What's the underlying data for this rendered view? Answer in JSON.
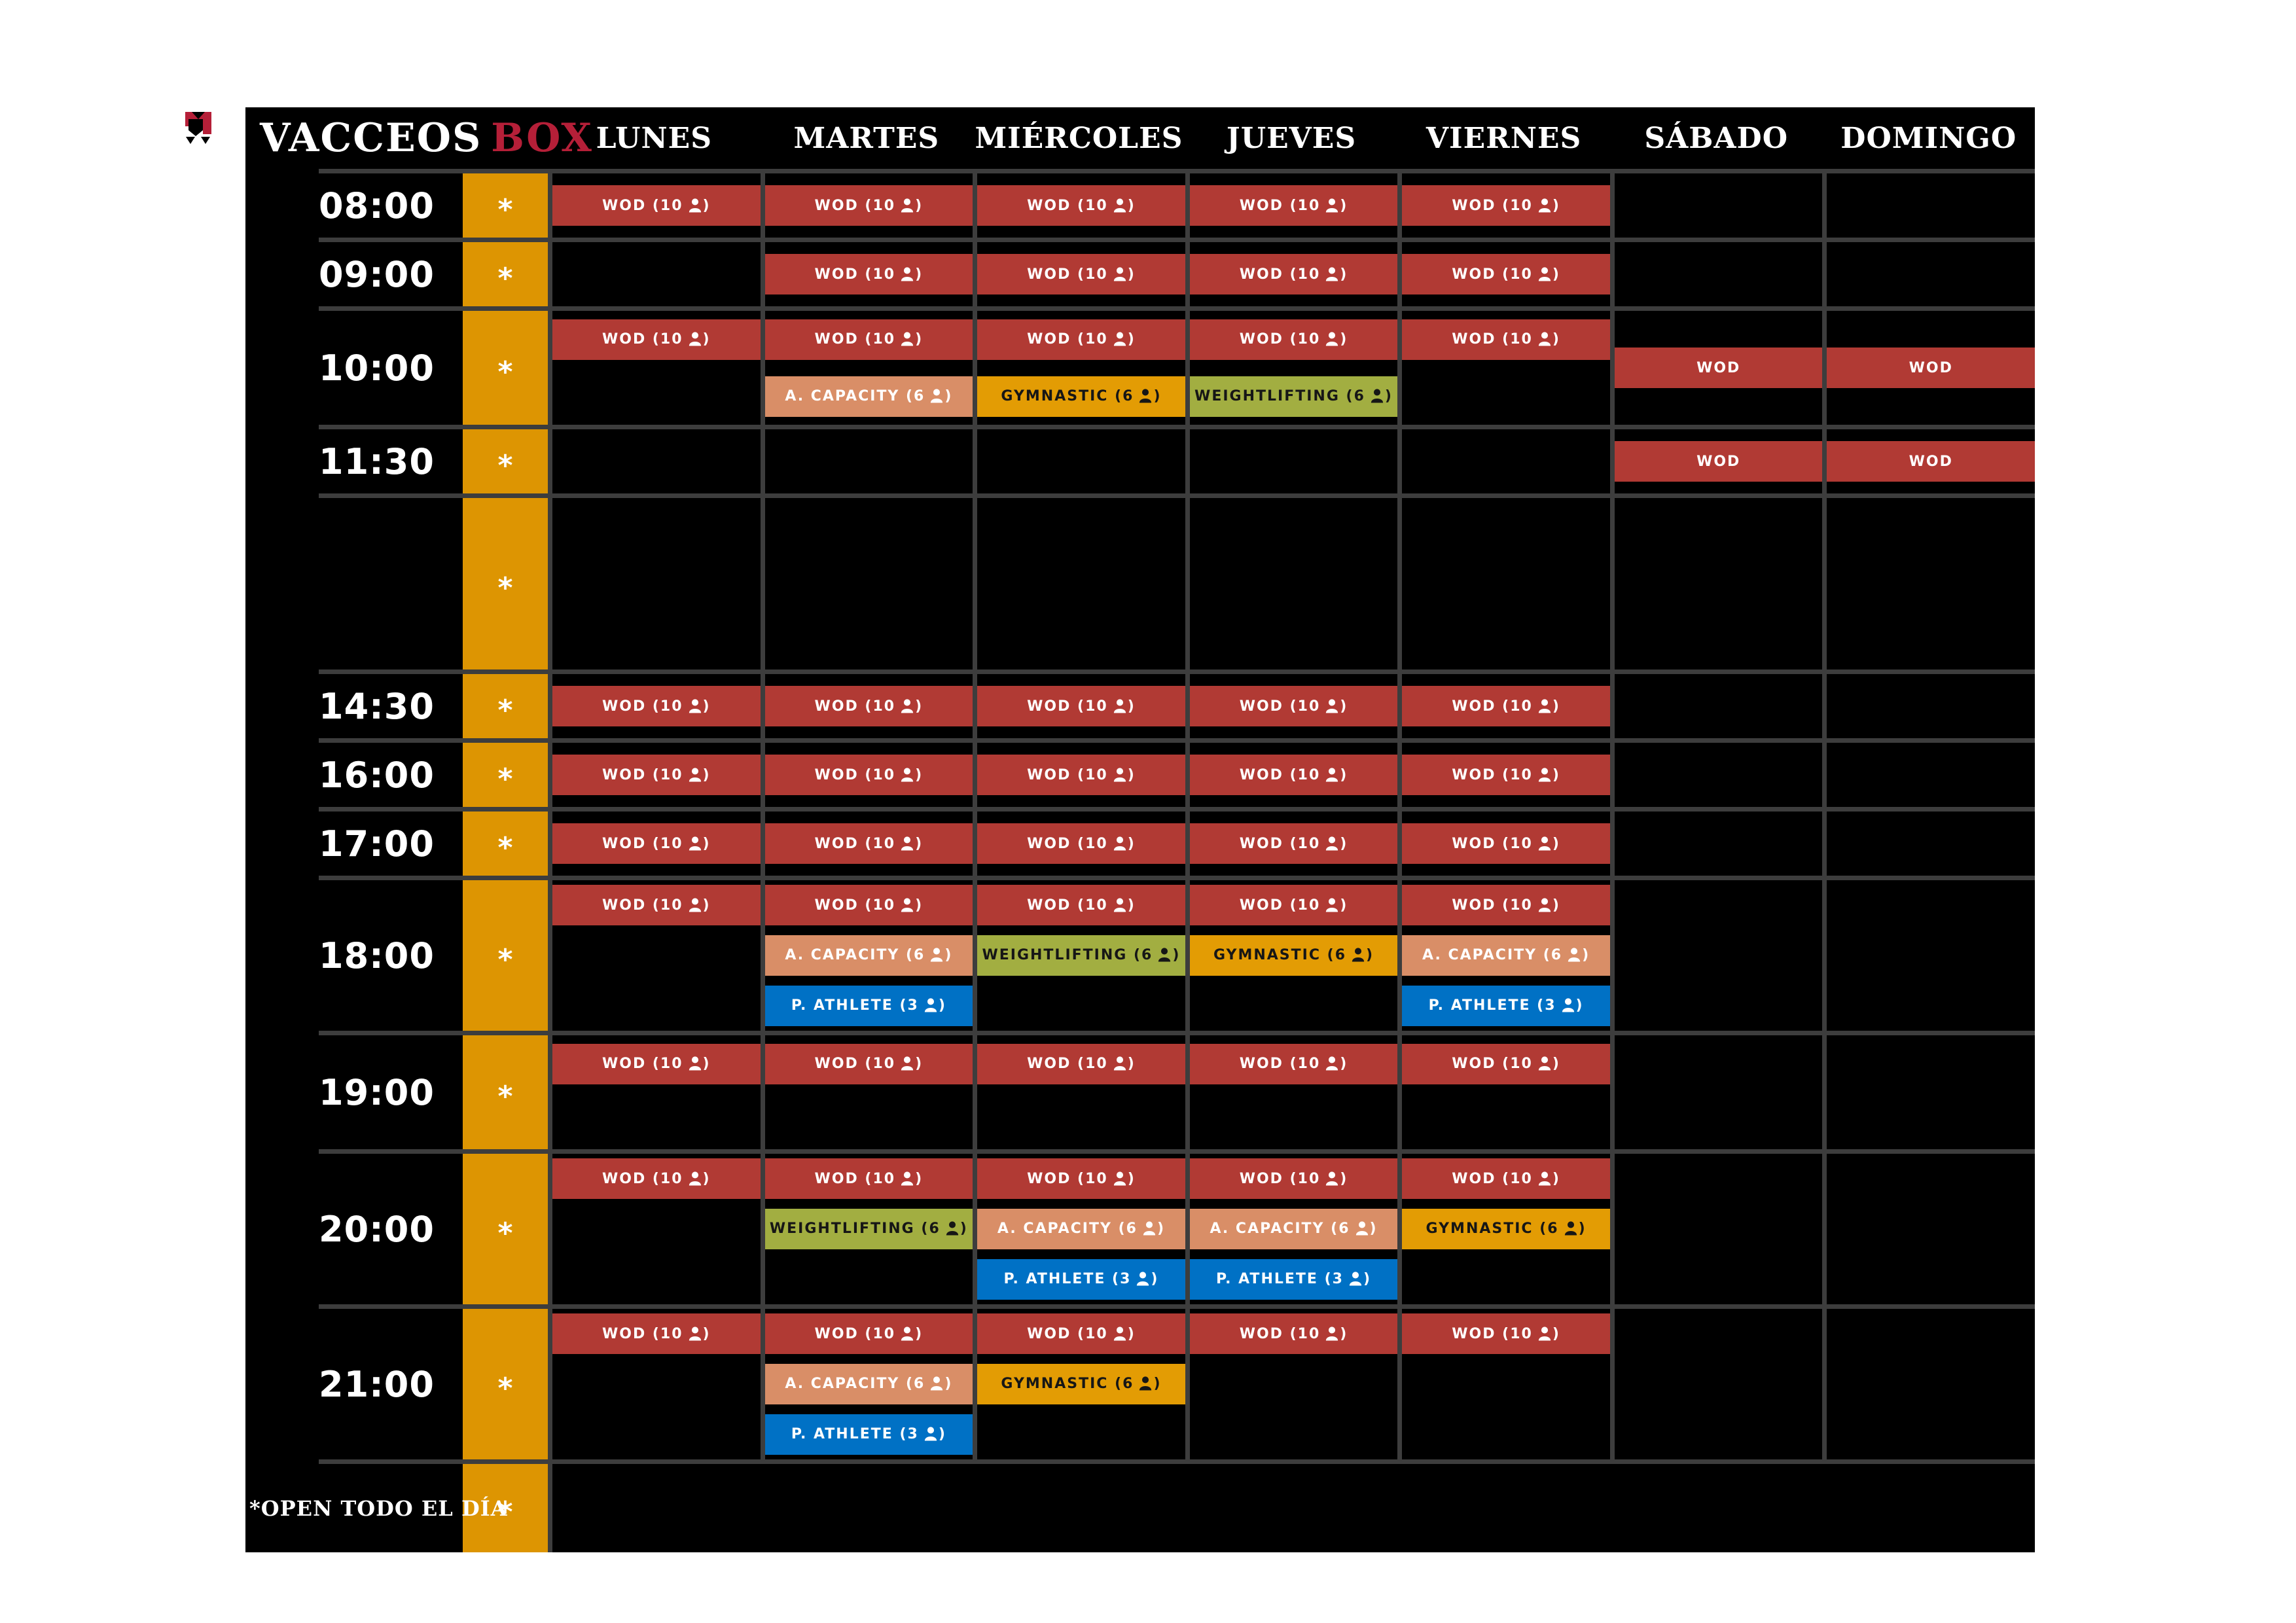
{
  "brand": {
    "name": "VACCEOS",
    "suffix": "BOX"
  },
  "days": [
    "LUNES",
    "MARTES",
    "MIÉRCOLES",
    "JUEVES",
    "VIERNES",
    "SÁBADO",
    "DOMINGO"
  ],
  "footer": {
    "label": "*OPEN TODO EL DÍA"
  },
  "asterisk": "*",
  "colors": {
    "page_background": "#ffffff",
    "board_background": "#000000",
    "grid_line": "#3d3d3d",
    "accent_column": "#dd9502",
    "brand_red": "#b51f38",
    "text_light": "#ffffff",
    "text_dark": "#161616"
  },
  "class_types": {
    "wod10": {
      "label": "WOD",
      "count": 10,
      "bg": "#b13a34",
      "fg": "#ffffff"
    },
    "wod": {
      "label": "WOD",
      "count": null,
      "bg": "#b13a34",
      "fg": "#ffffff"
    },
    "acap": {
      "label": "A. CAPACITY",
      "count": 6,
      "bg": "#d98e67",
      "fg": "#ffffff"
    },
    "gym": {
      "label": "GYMNASTIC",
      "count": 6,
      "bg": "#e39c04",
      "fg": "#161616"
    },
    "wl": {
      "label": "WEIGHTLIFTING",
      "count": 6,
      "bg": "#a2ae41",
      "fg": "#161616"
    },
    "path": {
      "label": "P. ATHLETE",
      "count": 3,
      "bg": "#0071c5",
      "fg": "#ffffff"
    }
  },
  "schedule": {
    "rows": [
      {
        "time": "08:00",
        "slots": 1,
        "cells": [
          [
            "wod10"
          ],
          [
            "wod10"
          ],
          [
            "wod10"
          ],
          [
            "wod10"
          ],
          [
            "wod10"
          ],
          [],
          []
        ]
      },
      {
        "time": "09:00",
        "slots": 1,
        "cells": [
          [],
          [
            "wod10"
          ],
          [
            "wod10"
          ],
          [
            "wod10"
          ],
          [
            "wod10"
          ],
          [],
          []
        ]
      },
      {
        "time": "10:00",
        "slots": 2,
        "cells": [
          [
            "wod10",
            null
          ],
          [
            "wod10",
            "acap"
          ],
          [
            "wod10",
            "gym"
          ],
          [
            "wod10",
            "wl"
          ],
          [
            "wod10",
            null
          ],
          {
            "mid": "wod"
          },
          {
            "mid": "wod"
          }
        ]
      },
      {
        "time": "11:30",
        "slots": 1,
        "cells": [
          [],
          [],
          [],
          [],
          [],
          [
            "wod"
          ],
          [
            "wod"
          ]
        ]
      },
      {
        "time": "",
        "kind": "break",
        "slots": 0,
        "cells": [
          [],
          [],
          [],
          [],
          [],
          [],
          []
        ]
      },
      {
        "time": "14:30",
        "slots": 1,
        "cells": [
          [
            "wod10"
          ],
          [
            "wod10"
          ],
          [
            "wod10"
          ],
          [
            "wod10"
          ],
          [
            "wod10"
          ],
          [],
          []
        ]
      },
      {
        "time": "16:00",
        "slots": 1,
        "cells": [
          [
            "wod10"
          ],
          [
            "wod10"
          ],
          [
            "wod10"
          ],
          [
            "wod10"
          ],
          [
            "wod10"
          ],
          [],
          []
        ]
      },
      {
        "time": "17:00",
        "slots": 1,
        "cells": [
          [
            "wod10"
          ],
          [
            "wod10"
          ],
          [
            "wod10"
          ],
          [
            "wod10"
          ],
          [
            "wod10"
          ],
          [],
          []
        ]
      },
      {
        "time": "18:00",
        "slots": 3,
        "cells": [
          [
            "wod10",
            null,
            null
          ],
          [
            "wod10",
            "acap",
            "path"
          ],
          [
            "wod10",
            "wl",
            null
          ],
          [
            "wod10",
            "gym",
            null
          ],
          [
            "wod10",
            "acap",
            "path"
          ],
          [],
          []
        ]
      },
      {
        "time": "19:00",
        "slots": 2,
        "cells": [
          [
            "wod10",
            null
          ],
          [
            "wod10",
            null
          ],
          [
            "wod10",
            null
          ],
          [
            "wod10",
            null
          ],
          [
            "wod10",
            null
          ],
          [],
          []
        ]
      },
      {
        "time": "20:00",
        "slots": 3,
        "cells": [
          [
            "wod10",
            null,
            null
          ],
          [
            "wod10",
            "wl",
            null
          ],
          [
            "wod10",
            "acap",
            "path"
          ],
          [
            "wod10",
            "acap",
            "path"
          ],
          [
            "wod10",
            "gym",
            null
          ],
          [],
          []
        ]
      },
      {
        "time": "21:00",
        "slots": 3,
        "cells": [
          [
            "wod10",
            null,
            null
          ],
          [
            "wod10",
            "acap",
            "path"
          ],
          [
            "wod10",
            "gym",
            null
          ],
          [
            "wod10",
            null,
            null
          ],
          [
            "wod10",
            null,
            null
          ],
          [],
          []
        ]
      }
    ]
  }
}
